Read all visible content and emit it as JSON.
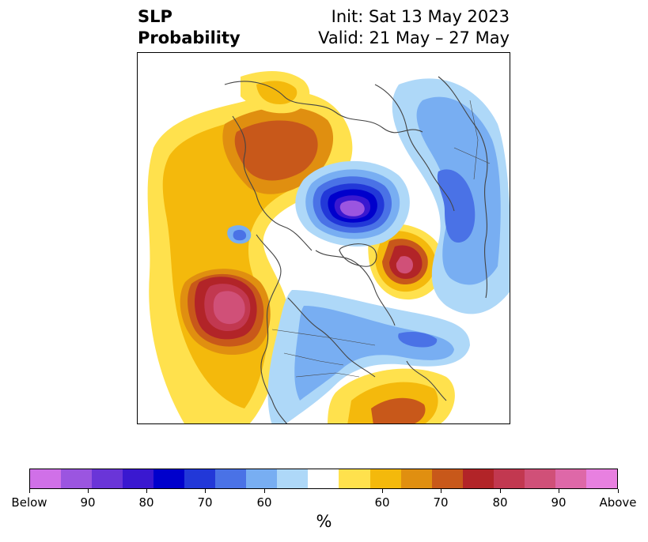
{
  "title": {
    "left_line1": "SLP",
    "left_line2": "Probability",
    "right_line1": "Init: Sat 13 May 2023",
    "right_line2": "Valid: 21 May – 27 May"
  },
  "colorbar": {
    "colors": [
      "#d070e8",
      "#9b55e0",
      "#6a35d8",
      "#3a18d0",
      "#0000cc",
      "#2238d8",
      "#4a72e6",
      "#78aef2",
      "#aed8f8",
      "#ffffff",
      "#ffe14d",
      "#f4b90c",
      "#e08f10",
      "#c8581a",
      "#b22428",
      "#c23850",
      "#d05078",
      "#de68a8",
      "#e880e0"
    ],
    "tick_labels": [
      "Below",
      "90",
      "80",
      "70",
      "60",
      "60",
      "70",
      "80",
      "90",
      "Above"
    ],
    "unit": "%"
  },
  "map": {
    "projection": "north-polar-stereographic",
    "field": "sea level pressure probability",
    "below_color_sequence": [
      "#aed8f8",
      "#78aef2",
      "#4a72e6",
      "#2238d8",
      "#0000cc",
      "#3a18d0",
      "#6a35d8",
      "#9b55e0",
      "#d070e8"
    ],
    "above_color_sequence": [
      "#ffe14d",
      "#f4b90c",
      "#e08f10",
      "#c8581a",
      "#b22428",
      "#c23850",
      "#d05078",
      "#de68a8"
    ],
    "coastline_color": "#444444"
  }
}
